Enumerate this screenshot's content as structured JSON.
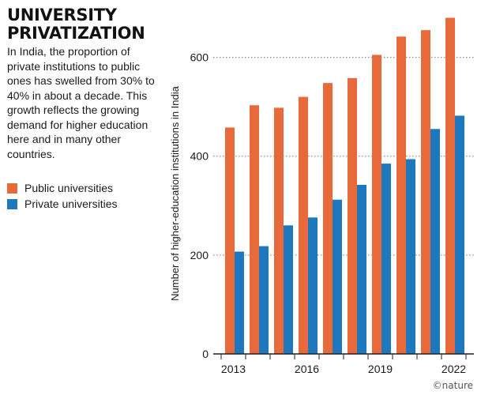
{
  "header": {
    "title_line1": "UNIVERSITY",
    "title_line2": "PRIVATIZATION",
    "description": "In India, the proportion of private institutions to public ones has swelled from 30% to 40% in about a decade. This growth reflects the growing demand for higher education here and in many other countries."
  },
  "legend": {
    "public_label": "Public universities",
    "private_label": "Private universities"
  },
  "credit": "©nature",
  "colors": {
    "public": "#E8693A",
    "private": "#1E78BE",
    "axis": "#222222",
    "grid": "#777777"
  },
  "chart_data": {
    "type": "bar",
    "title": "UNIVERSITY PRIVATIZATION",
    "xlabel": "",
    "ylabel": "Number of higher-education institutions in India",
    "categories": [
      "2013",
      "2014",
      "2015",
      "2016",
      "2017",
      "2018",
      "2019",
      "2020",
      "2021",
      "2022"
    ],
    "x_tick_labels": [
      "2013",
      "2016",
      "2019",
      "2022"
    ],
    "y_ticks": [
      0,
      200,
      400,
      600
    ],
    "ylim": [
      0,
      690
    ],
    "grid": "horizontal dotted",
    "legend_position": "left",
    "series": [
      {
        "name": "Public universities",
        "values": [
          458,
          503,
          498,
          520,
          548,
          558,
          605,
          642,
          655,
          680
        ]
      },
      {
        "name": "Private universities",
        "values": [
          207,
          218,
          260,
          276,
          312,
          342,
          385,
          394,
          455,
          482
        ]
      }
    ]
  }
}
